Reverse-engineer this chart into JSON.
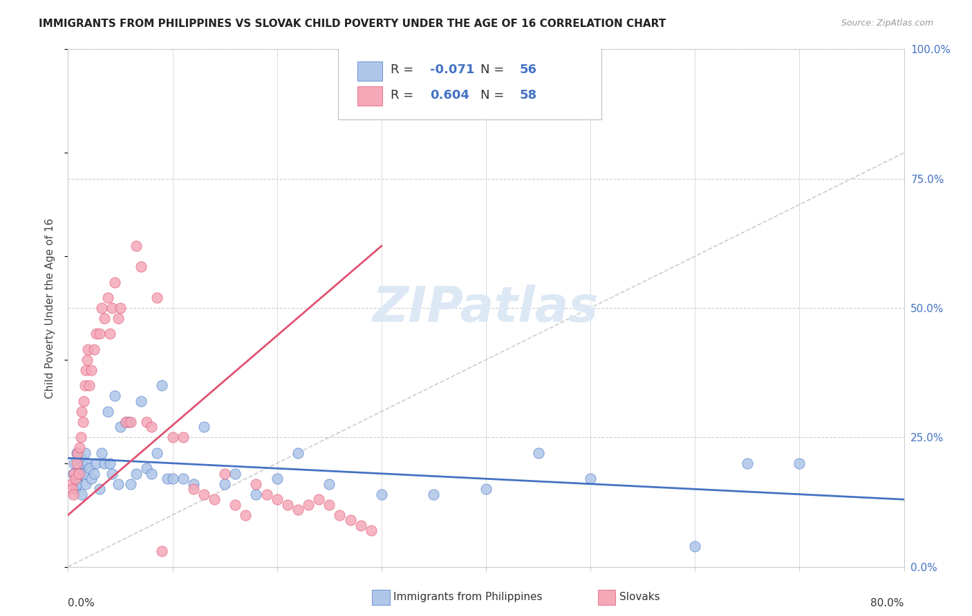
{
  "title": "IMMIGRANTS FROM PHILIPPINES VS SLOVAK CHILD POVERTY UNDER THE AGE OF 16 CORRELATION CHART",
  "source": "Source: ZipAtlas.com",
  "ylabel": "Child Poverty Under the Age of 16",
  "yticks": [
    "0.0%",
    "25.0%",
    "50.0%",
    "75.0%",
    "100.0%"
  ],
  "ytick_vals": [
    0.0,
    0.25,
    0.5,
    0.75,
    1.0
  ],
  "xlim": [
    0.0,
    0.8
  ],
  "ylim": [
    0.0,
    1.0
  ],
  "R_blue": "-0.071",
  "N_blue": "56",
  "R_pink": "0.604",
  "N_pink": "58",
  "watermark": "ZIPatlas",
  "blue_scatter_x": [
    0.005,
    0.006,
    0.007,
    0.008,
    0.008,
    0.009,
    0.01,
    0.011,
    0.012,
    0.013,
    0.014,
    0.015,
    0.016,
    0.017,
    0.018,
    0.02,
    0.022,
    0.025,
    0.027,
    0.03,
    0.032,
    0.035,
    0.038,
    0.04,
    0.042,
    0.045,
    0.048,
    0.05,
    0.055,
    0.058,
    0.06,
    0.065,
    0.07,
    0.075,
    0.08,
    0.085,
    0.09,
    0.095,
    0.1,
    0.11,
    0.12,
    0.13,
    0.15,
    0.16,
    0.18,
    0.2,
    0.22,
    0.25,
    0.3,
    0.35,
    0.4,
    0.45,
    0.5,
    0.6,
    0.65,
    0.7
  ],
  "blue_scatter_y": [
    0.18,
    0.2,
    0.15,
    0.17,
    0.22,
    0.16,
    0.19,
    0.18,
    0.21,
    0.14,
    0.2,
    0.18,
    0.22,
    0.16,
    0.2,
    0.19,
    0.17,
    0.18,
    0.2,
    0.15,
    0.22,
    0.2,
    0.3,
    0.2,
    0.18,
    0.33,
    0.16,
    0.27,
    0.28,
    0.28,
    0.16,
    0.18,
    0.32,
    0.19,
    0.18,
    0.22,
    0.35,
    0.17,
    0.17,
    0.17,
    0.16,
    0.27,
    0.16,
    0.18,
    0.14,
    0.17,
    0.22,
    0.16,
    0.14,
    0.14,
    0.15,
    0.22,
    0.17,
    0.04,
    0.2,
    0.2
  ],
  "pink_scatter_x": [
    0.003,
    0.004,
    0.005,
    0.006,
    0.007,
    0.008,
    0.009,
    0.01,
    0.011,
    0.012,
    0.013,
    0.014,
    0.015,
    0.016,
    0.017,
    0.018,
    0.019,
    0.02,
    0.022,
    0.025,
    0.027,
    0.03,
    0.032,
    0.035,
    0.038,
    0.04,
    0.042,
    0.045,
    0.048,
    0.05,
    0.055,
    0.06,
    0.065,
    0.07,
    0.075,
    0.08,
    0.085,
    0.09,
    0.1,
    0.11,
    0.12,
    0.13,
    0.14,
    0.15,
    0.16,
    0.17,
    0.18,
    0.19,
    0.2,
    0.21,
    0.22,
    0.23,
    0.24,
    0.25,
    0.26,
    0.27,
    0.28,
    0.29
  ],
  "pink_scatter_y": [
    0.16,
    0.15,
    0.14,
    0.18,
    0.17,
    0.2,
    0.22,
    0.18,
    0.23,
    0.25,
    0.3,
    0.28,
    0.32,
    0.35,
    0.38,
    0.4,
    0.42,
    0.35,
    0.38,
    0.42,
    0.45,
    0.45,
    0.5,
    0.48,
    0.52,
    0.45,
    0.5,
    0.55,
    0.48,
    0.5,
    0.28,
    0.28,
    0.62,
    0.58,
    0.28,
    0.27,
    0.52,
    0.03,
    0.25,
    0.25,
    0.15,
    0.14,
    0.13,
    0.18,
    0.12,
    0.1,
    0.16,
    0.14,
    0.13,
    0.12,
    0.11,
    0.12,
    0.13,
    0.12,
    0.1,
    0.09,
    0.08,
    0.07
  ],
  "blue_line_x": [
    0.0,
    0.8
  ],
  "blue_line_y": [
    0.21,
    0.13
  ],
  "pink_line_x": [
    0.0,
    0.3
  ],
  "pink_line_y": [
    0.1,
    0.62
  ],
  "diagonal_line_x": [
    0.0,
    0.8
  ],
  "diagonal_line_y": [
    0.0,
    0.8
  ],
  "title_color": "#222222",
  "source_color": "#999999",
  "axis_color": "#cccccc",
  "blue_scatter_color": "#aec6e8",
  "pink_scatter_color": "#f4a8b8",
  "blue_line_color": "#4472c4",
  "pink_line_color": "#e05070",
  "diagonal_color": "#cccccc",
  "watermark_color": "#dde8f5",
  "right_axis_tick_color": "#4472c4"
}
